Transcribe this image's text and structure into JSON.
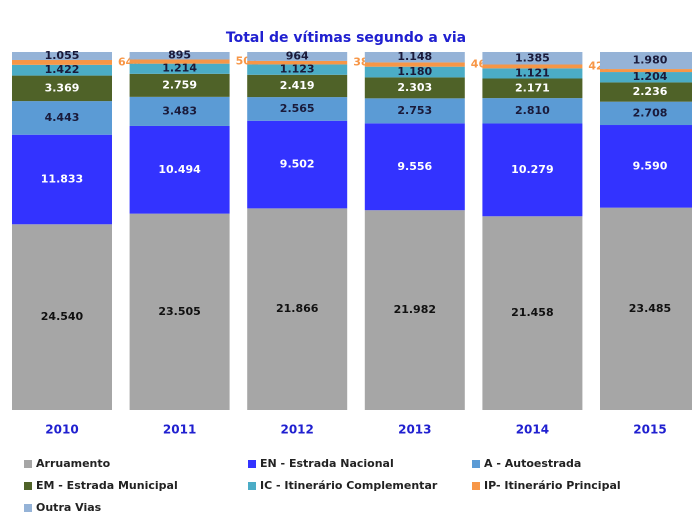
{
  "chart_data": {
    "type": "stacked_bar_100",
    "title": "Total de vítimas segundo a via",
    "categories": [
      "2010",
      "2011",
      "2012",
      "2013",
      "2014",
      "2015"
    ],
    "series": [
      {
        "name": "Arruamento",
        "color": "#a6a6a6",
        "values": [
          24540,
          23505,
          21866,
          21982,
          21458,
          23485
        ],
        "value_labels": [
          "24.540",
          "23.505",
          "21.866",
          "21.982",
          "21.458",
          "23.485"
        ]
      },
      {
        "name": "EN - Estrada Nacional",
        "color": "#3333ff",
        "values": [
          11833,
          10494,
          9502,
          9556,
          10279,
          9590
        ],
        "value_labels": [
          "11.833",
          "10.494",
          "9.502",
          "9.556",
          "10.279",
          "9.590"
        ]
      },
      {
        "name": "A  - Autoestrada",
        "color": "#5b9bd5",
        "values": [
          4443,
          3483,
          2565,
          2753,
          2810,
          2708
        ],
        "value_labels": [
          "4.443",
          "3.483",
          "2.565",
          "2.753",
          "2.810",
          "2.708"
        ]
      },
      {
        "name": "EM - Estrada Municipal",
        "color": "#4f6228",
        "values": [
          3369,
          2759,
          2419,
          2303,
          2171,
          2236
        ],
        "value_labels": [
          "3.369",
          "2.759",
          "2.419",
          "2.303",
          "2.171",
          "2.236"
        ]
      },
      {
        "name": "IC - Itinerário Complementar",
        "color": "#4bacc6",
        "values": [
          1422,
          1214,
          1123,
          1180,
          1121,
          1204
        ],
        "value_labels": [
          "1.422",
          "1.214",
          "1.123",
          "1.180",
          "1.121",
          "1.204"
        ]
      },
      {
        "name": "IP- Itinerário Principal",
        "color": "#f79646",
        "values": [
          640,
          501,
          384,
          468,
          429,
          346
        ]
      },
      {
        "name": "Outra Vias",
        "color": "#95b3d7",
        "values": [
          1055,
          895,
          964,
          1148,
          1385,
          1980
        ],
        "value_labels": [
          "1.055",
          "895",
          "964",
          "1.148",
          "1.385",
          "1.980"
        ]
      }
    ]
  }
}
